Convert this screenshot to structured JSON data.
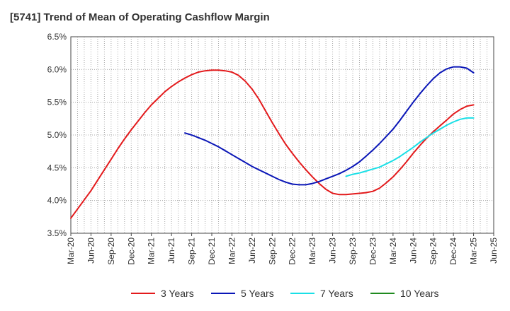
{
  "title": "[5741]  Trend of Mean of Operating Cashflow Margin",
  "chart_data": {
    "type": "line",
    "title": "[5741]  Trend of Mean of Operating Cashflow Margin",
    "xlabel": "",
    "ylabel": "",
    "ylim": [
      3.5,
      6.5
    ],
    "y_ticks": [
      3.5,
      4.0,
      4.5,
      5.0,
      5.5,
      6.0,
      6.5
    ],
    "y_tick_labels": [
      "3.5%",
      "4.0%",
      "4.5%",
      "5.0%",
      "5.5%",
      "6.0%",
      "6.5%"
    ],
    "x_tick_labels": [
      "Mar-20",
      "Jun-20",
      "Sep-20",
      "Dec-20",
      "Mar-21",
      "Jun-21",
      "Sep-21",
      "Dec-21",
      "Mar-22",
      "Jun-22",
      "Sep-22",
      "Dec-22",
      "Mar-23",
      "Jun-23",
      "Sep-23",
      "Dec-23",
      "Mar-24",
      "Jun-24",
      "Sep-24",
      "Dec-24",
      "Mar-25",
      "Jun-25"
    ],
    "grid": true,
    "legend_position": "bottom",
    "series": [
      {
        "name": "3 Years",
        "color": "#e31a1c",
        "x": [
          "Mar-20",
          "Apr-20",
          "May-20",
          "Jun-20",
          "Jul-20",
          "Aug-20",
          "Sep-20",
          "Oct-20",
          "Nov-20",
          "Dec-20",
          "Jan-21",
          "Feb-21",
          "Mar-21",
          "Apr-21",
          "May-21",
          "Jun-21",
          "Jul-21",
          "Aug-21",
          "Sep-21",
          "Oct-21",
          "Nov-21",
          "Dec-21",
          "Jan-22",
          "Feb-22",
          "Mar-22",
          "Apr-22",
          "May-22",
          "Jun-22",
          "Jul-22",
          "Aug-22",
          "Sep-22",
          "Oct-22",
          "Nov-22",
          "Dec-22",
          "Jan-23",
          "Feb-23",
          "Mar-23",
          "Apr-23",
          "May-23",
          "Jun-23",
          "Jul-23",
          "Aug-23",
          "Sep-23",
          "Oct-23",
          "Nov-23",
          "Dec-23",
          "Jan-24",
          "Feb-24",
          "Mar-24",
          "Apr-24",
          "May-24",
          "Jun-24",
          "Jul-24",
          "Aug-24",
          "Sep-24",
          "Oct-24",
          "Nov-24",
          "Dec-24",
          "Jan-25",
          "Feb-25",
          "Mar-25"
        ],
        "values": [
          3.73,
          3.87,
          4.01,
          4.15,
          4.31,
          4.47,
          4.63,
          4.79,
          4.94,
          5.08,
          5.21,
          5.34,
          5.46,
          5.56,
          5.66,
          5.74,
          5.81,
          5.87,
          5.92,
          5.96,
          5.98,
          5.99,
          5.99,
          5.98,
          5.96,
          5.91,
          5.82,
          5.7,
          5.55,
          5.37,
          5.19,
          5.02,
          4.86,
          4.72,
          4.59,
          4.47,
          4.36,
          4.26,
          4.17,
          4.11,
          4.09,
          4.09,
          4.1,
          4.11,
          4.12,
          4.14,
          4.19,
          4.27,
          4.36,
          4.47,
          4.59,
          4.72,
          4.84,
          4.95,
          5.05,
          5.14,
          5.23,
          5.32,
          5.39,
          5.44,
          5.46
        ]
      },
      {
        "name": "5 Years",
        "color": "#0a16b7",
        "x": [
          "Aug-21",
          "Sep-21",
          "Oct-21",
          "Nov-21",
          "Dec-21",
          "Jan-22",
          "Feb-22",
          "Mar-22",
          "Apr-22",
          "May-22",
          "Jun-22",
          "Jul-22",
          "Aug-22",
          "Sep-22",
          "Oct-22",
          "Nov-22",
          "Dec-22",
          "Jan-23",
          "Feb-23",
          "Mar-23",
          "Apr-23",
          "May-23",
          "Jun-23",
          "Jul-23",
          "Aug-23",
          "Sep-23",
          "Oct-23",
          "Nov-23",
          "Dec-23",
          "Jan-24",
          "Feb-24",
          "Mar-24",
          "Apr-24",
          "May-24",
          "Jun-24",
          "Jul-24",
          "Aug-24",
          "Sep-24",
          "Oct-24",
          "Nov-24",
          "Dec-24",
          "Jan-25",
          "Feb-25",
          "Mar-25"
        ],
        "values": [
          5.03,
          5.0,
          4.96,
          4.92,
          4.87,
          4.82,
          4.76,
          4.7,
          4.64,
          4.58,
          4.52,
          4.47,
          4.42,
          4.37,
          4.32,
          4.28,
          4.25,
          4.24,
          4.24,
          4.26,
          4.29,
          4.33,
          4.37,
          4.41,
          4.46,
          4.52,
          4.59,
          4.68,
          4.77,
          4.87,
          4.98,
          5.09,
          5.22,
          5.36,
          5.5,
          5.63,
          5.75,
          5.86,
          5.95,
          6.01,
          6.04,
          6.04,
          6.02,
          5.95
        ]
      },
      {
        "name": "7 Years",
        "color": "#1adfe6",
        "x": [
          "Aug-23",
          "Sep-23",
          "Oct-23",
          "Nov-23",
          "Dec-23",
          "Jan-24",
          "Feb-24",
          "Mar-24",
          "Apr-24",
          "May-24",
          "Jun-24",
          "Jul-24",
          "Aug-24",
          "Sep-24",
          "Oct-24",
          "Nov-24",
          "Dec-24",
          "Jan-25",
          "Feb-25",
          "Mar-25"
        ],
        "values": [
          4.37,
          4.4,
          4.42,
          4.45,
          4.48,
          4.51,
          4.56,
          4.61,
          4.67,
          4.74,
          4.81,
          4.89,
          4.96,
          5.03,
          5.09,
          5.15,
          5.2,
          5.24,
          5.26,
          5.26
        ]
      },
      {
        "name": "10 Years",
        "color": "#1f8a1f",
        "x": [],
        "values": []
      }
    ]
  },
  "legend": [
    {
      "label": "3 Years",
      "color": "#e31a1c"
    },
    {
      "label": "5 Years",
      "color": "#0a16b7"
    },
    {
      "label": "7 Years",
      "color": "#1adfe6"
    },
    {
      "label": "10 Years",
      "color": "#1f8a1f"
    }
  ]
}
